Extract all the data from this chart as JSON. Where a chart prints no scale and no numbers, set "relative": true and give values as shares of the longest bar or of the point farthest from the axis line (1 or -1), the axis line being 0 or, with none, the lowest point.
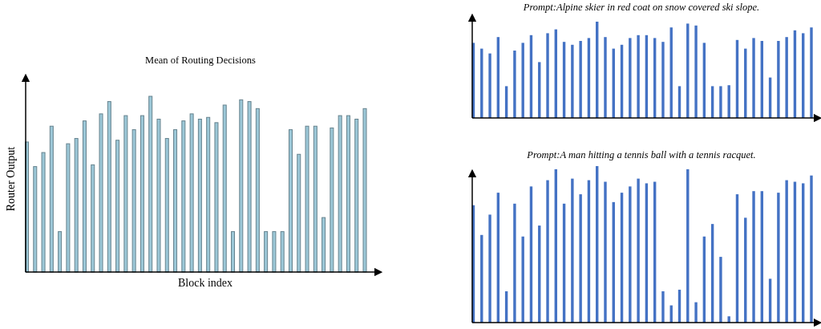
{
  "chart_data": [
    {
      "type": "bar",
      "relative": true,
      "title": "Mean of Routing Decisions",
      "xlabel": "Block index",
      "ylabel": "Router Output",
      "color": "#9cc8d8",
      "categories": [
        null,
        null,
        null,
        null,
        null,
        null,
        null,
        null,
        null,
        null,
        null,
        null,
        null,
        null,
        null,
        null,
        null,
        null,
        null,
        null,
        null,
        null,
        null,
        null,
        null,
        null,
        null,
        null,
        null,
        null,
        null,
        null,
        null,
        null,
        null,
        null,
        null,
        null,
        null,
        null,
        null,
        null
      ],
      "values": [
        0.74,
        0.6,
        0.68,
        0.83,
        0.23,
        0.73,
        0.76,
        0.86,
        0.61,
        0.9,
        0.97,
        0.75,
        0.89,
        0.81,
        0.89,
        1.0,
        0.87,
        0.76,
        0.81,
        0.86,
        0.9,
        0.87,
        0.88,
        0.85,
        0.95,
        0.23,
        0.98,
        0.97,
        0.93,
        0.23,
        0.23,
        0.23,
        0.81,
        0.67,
        0.83,
        0.83,
        0.31,
        0.82,
        0.89,
        0.89,
        0.87,
        0.93
      ]
    },
    {
      "type": "bar",
      "relative": true,
      "title": "Prompt:Alpine skier in red coat on snow covered ski slope.",
      "color": "#4472c4",
      "categories": [
        null,
        null,
        null,
        null,
        null,
        null,
        null,
        null,
        null,
        null,
        null,
        null,
        null,
        null,
        null,
        null,
        null,
        null,
        null,
        null,
        null,
        null,
        null,
        null,
        null,
        null,
        null,
        null,
        null,
        null,
        null,
        null,
        null,
        null,
        null,
        null,
        null,
        null,
        null,
        null,
        null,
        null
      ],
      "values": [
        0.78,
        0.72,
        0.67,
        0.84,
        0.33,
        0.7,
        0.78,
        0.86,
        0.58,
        0.88,
        0.92,
        0.79,
        0.76,
        0.8,
        0.83,
        1.0,
        0.84,
        0.72,
        0.76,
        0.83,
        0.86,
        0.86,
        0.83,
        0.79,
        0.94,
        0.33,
        0.98,
        0.96,
        0.78,
        0.33,
        0.33,
        0.34,
        0.81,
        0.72,
        0.83,
        0.8,
        0.42,
        0.8,
        0.84,
        0.91,
        0.88,
        0.94
      ]
    },
    {
      "type": "bar",
      "relative": true,
      "title": "Prompt:A man hitting a tennis ball with a tennis racquet.",
      "color": "#4472c4",
      "categories": [
        null,
        null,
        null,
        null,
        null,
        null,
        null,
        null,
        null,
        null,
        null,
        null,
        null,
        null,
        null,
        null,
        null,
        null,
        null,
        null,
        null,
        null,
        null,
        null,
        null,
        null,
        null,
        null,
        null,
        null,
        null,
        null,
        null,
        null,
        null,
        null,
        null,
        null,
        null,
        null,
        null,
        null
      ],
      "values": [
        0.75,
        0.56,
        0.69,
        0.83,
        0.2,
        0.76,
        0.55,
        0.87,
        0.62,
        0.91,
        0.98,
        0.76,
        0.92,
        0.82,
        0.91,
        1.0,
        0.9,
        0.77,
        0.83,
        0.87,
        0.92,
        0.89,
        0.9,
        0.2,
        0.11,
        0.21,
        0.98,
        0.13,
        0.55,
        0.63,
        0.42,
        0.04,
        0.82,
        0.67,
        0.84,
        0.84,
        0.28,
        0.83,
        0.91,
        0.9,
        0.89,
        0.94
      ]
    }
  ]
}
